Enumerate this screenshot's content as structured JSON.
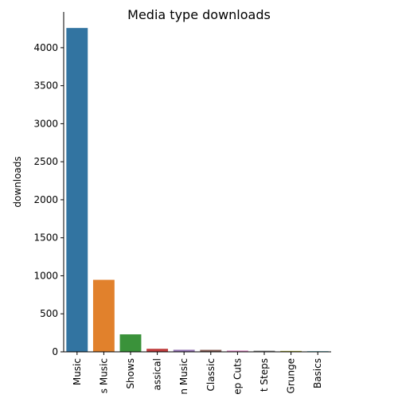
{
  "chart_data": {
    "type": "bar",
    "title": "Media type downloads",
    "xlabel": "",
    "ylabel": "downloads",
    "ylim": [
      0,
      4470
    ],
    "yticks": [
      0,
      500,
      1000,
      1500,
      2000,
      2500,
      3000,
      3500,
      4000
    ],
    "grid": false,
    "categories": [
      "Music",
      "s Music",
      "Shows",
      "assical",
      "n Music",
      "Classic",
      "ep Cuts",
      "t Steps",
      "Grunge",
      "Basics"
    ],
    "values": [
      4259,
      947,
      230,
      40,
      27,
      26,
      17,
      15,
      12,
      8
    ],
    "colors": [
      "#3274a1",
      "#e1812c",
      "#3a923a",
      "#c03d3e",
      "#9372b2",
      "#845b53",
      "#d684bd",
      "#7f7f7f",
      "#a9aa35",
      "#2eb0c0"
    ]
  }
}
